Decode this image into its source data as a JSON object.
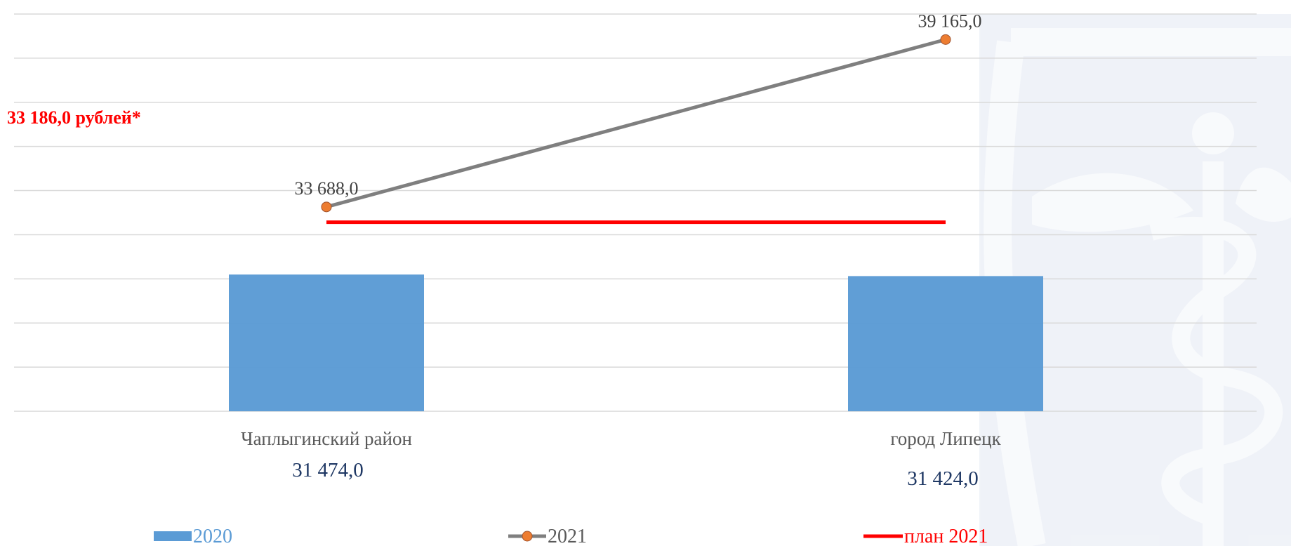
{
  "chart_data": {
    "type": "bar",
    "categories": [
      "Чаплыгинский район",
      "город Липецк"
    ],
    "series": [
      {
        "name": "2020",
        "kind": "bar",
        "values": [
          31474.0,
          31424.0
        ],
        "labels": [
          "31 474,0",
          "31 424,0"
        ]
      },
      {
        "name": "2021",
        "kind": "line",
        "values": [
          33688.0,
          39165.0
        ],
        "labels": [
          "33 688,0",
          "39 165,0"
        ]
      },
      {
        "name": "план 2021",
        "kind": "line",
        "values": [
          33186.0,
          33186.0
        ]
      }
    ],
    "plan_label": "33 186,0 рублей*",
    "ylim": [
      27000,
      40000
    ],
    "grid": true,
    "legend_position": "bottom"
  },
  "colors": {
    "bar": "#5b9bd5",
    "line_2021": "#7f7f7f",
    "marker_2021": "#ed7d31",
    "plan": "#ff0000",
    "grid": "#d9d9d9",
    "legend_2020_text": "#5b9bd5",
    "legend_2021_text": "#595959",
    "legend_plan_text": "#ff0000",
    "watermark": "#c9d3e6"
  },
  "watermark": {
    "icon": "caduceus-emblem-icon"
  }
}
